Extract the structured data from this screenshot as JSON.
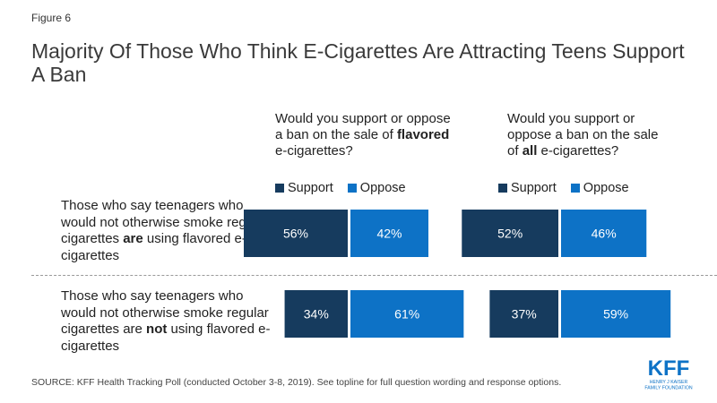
{
  "figure_label": "Figure 6",
  "title": "Majority Of Those Who Think E-Cigarettes Are Attracting Teens Support A Ban",
  "questions": [
    {
      "pre": "Would you support or oppose a ban on the sale of ",
      "emph": "flavored",
      "post": " e-cigarettes?"
    },
    {
      "pre": "Would you support or oppose a ban on the sale of ",
      "emph": "all",
      "post": " e-cigarettes?"
    }
  ],
  "legend": {
    "support": "Support",
    "oppose": "Oppose"
  },
  "row_labels": [
    {
      "pre": "Those who say teenagers who would not otherwise smoke regular cigarettes ",
      "emph": "are",
      "post": " using flavored e-cigarettes"
    },
    {
      "pre": "Those who say teenagers who would not otherwise smoke regular cigarettes are ",
      "emph": "not",
      "post": " using flavored e-cigarettes"
    }
  ],
  "colors": {
    "support": "#163b5e",
    "oppose": "#0d72c6"
  },
  "chart_data": [
    {
      "type": "bar",
      "orientation": "horizontal",
      "stacked": true,
      "categories": [
        "Those who say teenagers who would not otherwise smoke regular cigarettes are using flavored e-cigarettes",
        "Those who say teenagers who would not otherwise smoke regular cigarettes are not using flavored e-cigarettes"
      ],
      "series": [
        {
          "name": "Support",
          "values": [
            56,
            34
          ]
        },
        {
          "name": "Oppose",
          "values": [
            42,
            61
          ]
        }
      ],
      "labels": [
        [
          "56%",
          "42%"
        ],
        [
          "34%",
          "61%"
        ]
      ],
      "title": "Would you support or oppose a ban on the sale of flavored e-cigarettes?"
    },
    {
      "type": "bar",
      "orientation": "horizontal",
      "stacked": true,
      "categories": [
        "Those who say teenagers who would not otherwise smoke regular cigarettes are using flavored e-cigarettes",
        "Those who say teenagers who would not otherwise smoke regular cigarettes are not using flavored e-cigarettes"
      ],
      "series": [
        {
          "name": "Support",
          "values": [
            52,
            37
          ]
        },
        {
          "name": "Oppose",
          "values": [
            46,
            59
          ]
        }
      ],
      "labels": [
        [
          "52%",
          "46%"
        ],
        [
          "37%",
          "59%"
        ]
      ],
      "title": "Would you support or oppose a ban on the sale of all e-cigarettes?"
    }
  ],
  "source": "SOURCE: KFF Health Tracking Poll (conducted October 3-8, 2019). See topline for full question wording and response options.",
  "logo": {
    "main": "KFF",
    "sub1": "HENRY J KAISER",
    "sub2": "FAMILY FOUNDATION"
  }
}
